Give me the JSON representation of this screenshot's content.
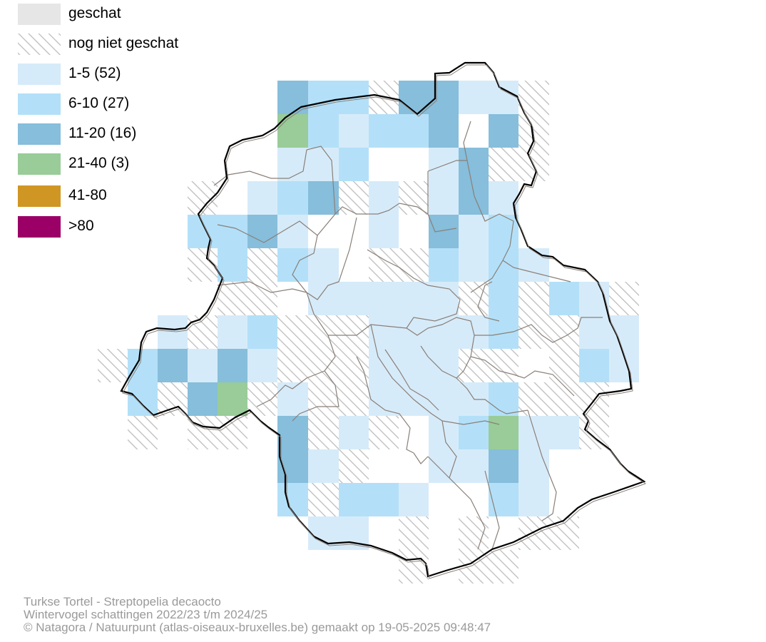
{
  "colors": {
    "estimated": "#e6e6e6",
    "hatch": "#bdbdbd",
    "bin_1_5": "#d6ebf9",
    "bin_6_10": "#b3e0f8",
    "bin_11_20": "#86bedb",
    "bin_21_40": "#99cc98",
    "bin_41_80": "#d09624",
    "bin_80_plus": "#9a0066",
    "border": "#000000",
    "commune_lines": "#8a7f78"
  },
  "legend": [
    {
      "key": "estimated",
      "label": "geschat",
      "style": "solid",
      "color": "#e6e6e6"
    },
    {
      "key": "not_estimated",
      "label": "nog niet geschat",
      "style": "hatch",
      "color": "#bdbdbd"
    },
    {
      "key": "bin_1_5",
      "label": "1-5 (52)",
      "style": "solid",
      "color": "#d6ebf9"
    },
    {
      "key": "bin_6_10",
      "label": "6-10 (27)",
      "style": "solid",
      "color": "#b3e0f8"
    },
    {
      "key": "bin_11_20",
      "label": "11-20 (16)",
      "style": "solid",
      "color": "#86bedb"
    },
    {
      "key": "bin_21_40",
      "label": "21-40 (3)",
      "style": "solid",
      "color": "#99cc98"
    },
    {
      "key": "bin_41_80",
      "label": "41-80",
      "style": "solid",
      "color": "#d09624"
    },
    {
      "key": "bin_80_plus",
      "label": ">80",
      "style": "solid",
      "color": "#9a0066"
    }
  ],
  "caption": {
    "line1": "Turkse Tortel - Streptopelia decaocto",
    "line2": "Wintervogel schattingen 2022/23 t/m 2024/25",
    "line3": "© Natagora / Natuurpunt (atlas-oiseaux-bruxelles.be) gemaakt op 19-05-2025 09:48:47"
  },
  "grid": {
    "rows": [
      "..........",
      "........3.2.2.2..1111..",
      ".........42122..34C4..",
      "........1111.2.11C1.c",
      "........124n4n1...3..1",
      ".......n..........1.2.",
      "........n2..44.1.1321.",
      ".........n1...3.n1.......",
      "...........2.1.1...2..1",
      ".......n..............1",
      "...........n1.1.n1....3.",
      "........2.14.....1..2.32",
      "...................",
      "....n4..2.n.4..3.n2.3",
      "...........n.12.n2.1",
      ".....1..n1..2.......1",
      "...........n.n1.1.1n..",
      "....nn............",
      "..........nn..n.n"
    ]
  }
}
